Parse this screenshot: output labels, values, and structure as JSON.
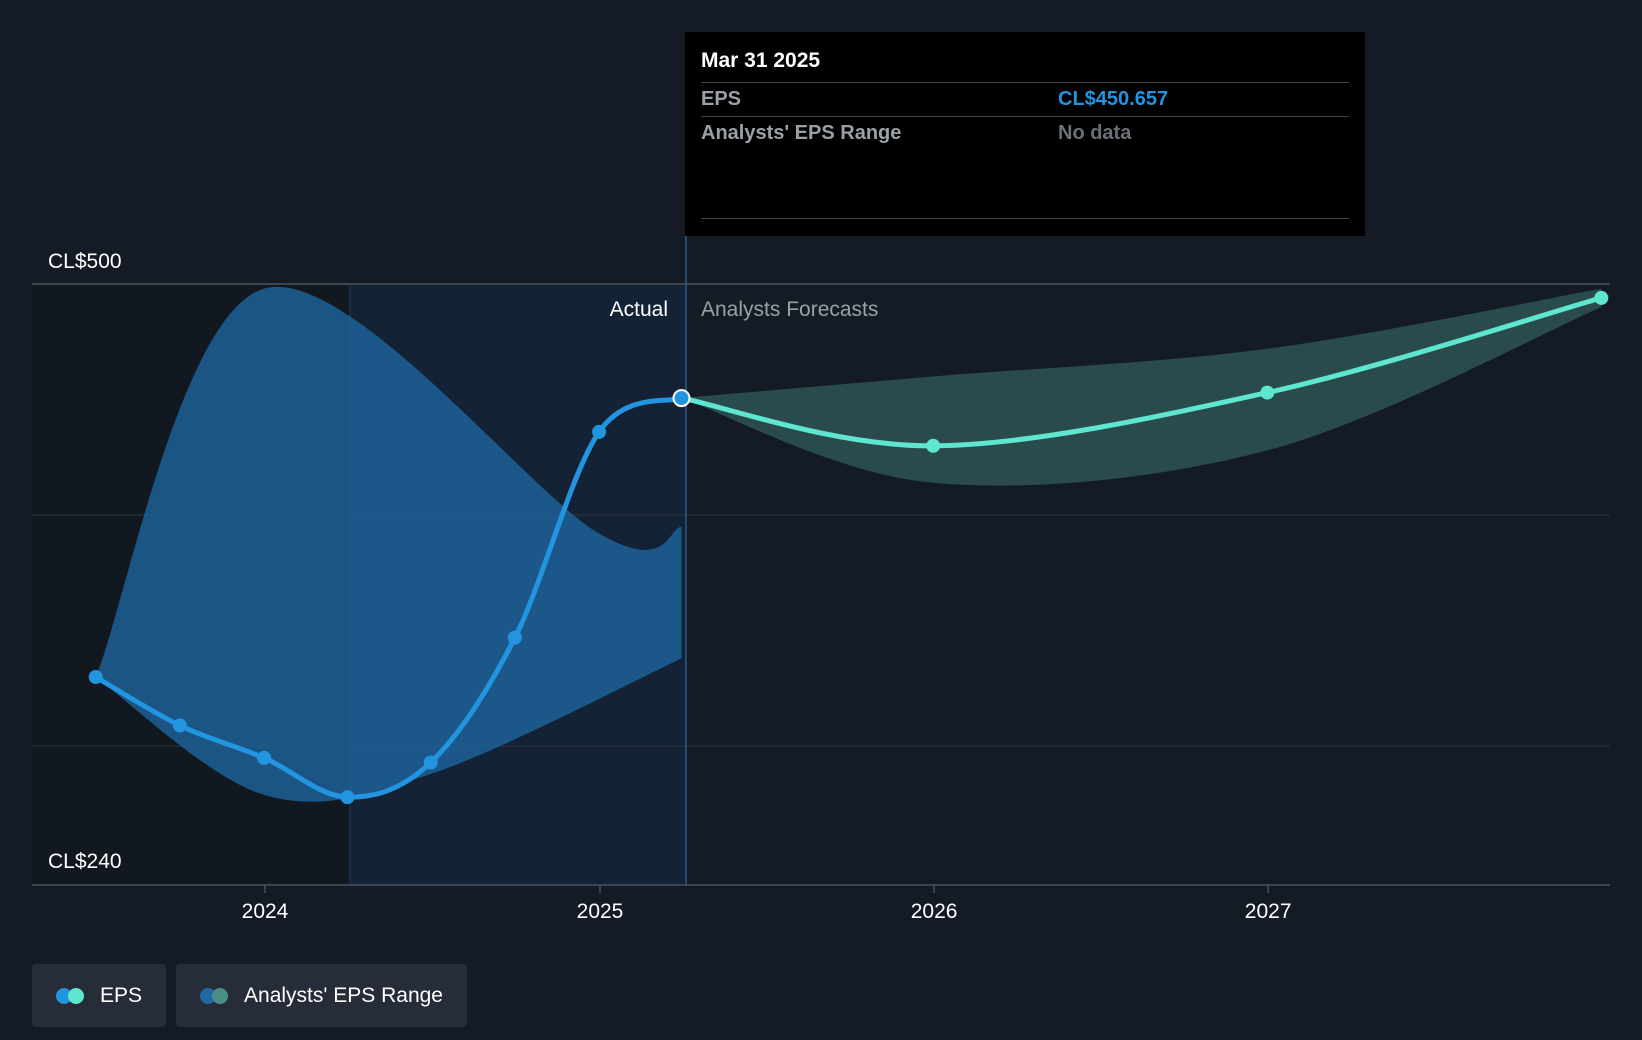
{
  "chart_data": {
    "type": "line",
    "title": "",
    "xlabel": "",
    "ylabel": "",
    "y_axis_labels": {
      "top": "CL$500",
      "bottom": "CL$240"
    },
    "ylim": [
      240,
      500
    ],
    "x_ticks": [
      "2024",
      "2025",
      "2026",
      "2027"
    ],
    "divider_date": "2025-03-31",
    "regions": {
      "actual_label": "Actual",
      "forecast_label": "Analysts Forecasts"
    },
    "series": [
      {
        "name": "EPS",
        "kind": "actual",
        "color": "#2394df",
        "points": [
          {
            "date": "2023-06-30",
            "value": 330
          },
          {
            "date": "2023-09-30",
            "value": 309
          },
          {
            "date": "2023-12-31",
            "value": 295
          },
          {
            "date": "2024-03-31",
            "value": 278
          },
          {
            "date": "2024-06-30",
            "value": 293
          },
          {
            "date": "2024-09-30",
            "value": 347
          },
          {
            "date": "2024-12-31",
            "value": 436
          },
          {
            "date": "2025-03-31",
            "value": 450.657
          }
        ]
      },
      {
        "name": "EPS",
        "kind": "forecast",
        "color": "#5ee6d0",
        "points": [
          {
            "date": "2025-03-31",
            "value": 450.657
          },
          {
            "date": "2025-12-31",
            "value": 430
          },
          {
            "date": "2026-12-31",
            "value": 453
          },
          {
            "date": "2027-12-31",
            "value": 494
          }
        ]
      }
    ],
    "ranges": [
      {
        "name": "Analysts' EPS Range",
        "kind": "actual",
        "color": "#1f6aa5",
        "upper": [
          {
            "date": "2023-06-30",
            "value": 330
          },
          {
            "date": "2023-12-31",
            "value": 498
          },
          {
            "date": "2024-12-31",
            "value": 392
          },
          {
            "date": "2025-03-31",
            "value": 395
          }
        ],
        "lower": [
          {
            "date": "2023-06-30",
            "value": 330
          },
          {
            "date": "2023-12-31",
            "value": 279
          },
          {
            "date": "2024-06-30",
            "value": 288
          },
          {
            "date": "2025-03-31",
            "value": 338
          }
        ]
      },
      {
        "name": "Analysts' EPS Range",
        "kind": "forecast",
        "color": "#2e5352",
        "upper": [
          {
            "date": "2025-03-31",
            "value": 450.657
          },
          {
            "date": "2025-12-31",
            "value": 460
          },
          {
            "date": "2026-12-31",
            "value": 472
          },
          {
            "date": "2027-12-31",
            "value": 498
          }
        ],
        "lower": [
          {
            "date": "2025-03-31",
            "value": 450.657
          },
          {
            "date": "2025-12-31",
            "value": 414
          },
          {
            "date": "2026-12-31",
            "value": 428
          },
          {
            "date": "2027-12-31",
            "value": 490
          }
        ]
      }
    ]
  },
  "tooltip": {
    "date": "Mar 31 2025",
    "rows": [
      {
        "label": "EPS",
        "value": "CL$450.657",
        "value_color": "#2394df"
      },
      {
        "label": "Analysts' EPS Range",
        "value": "No data",
        "value_color": "#6b7078"
      }
    ]
  },
  "legend": [
    {
      "label": "EPS",
      "colors": [
        "#2394df",
        "#5ee6d0"
      ]
    },
    {
      "label": "Analysts' EPS Range",
      "colors": [
        "#1f6aa5",
        "#4a8f87"
      ]
    }
  ]
}
